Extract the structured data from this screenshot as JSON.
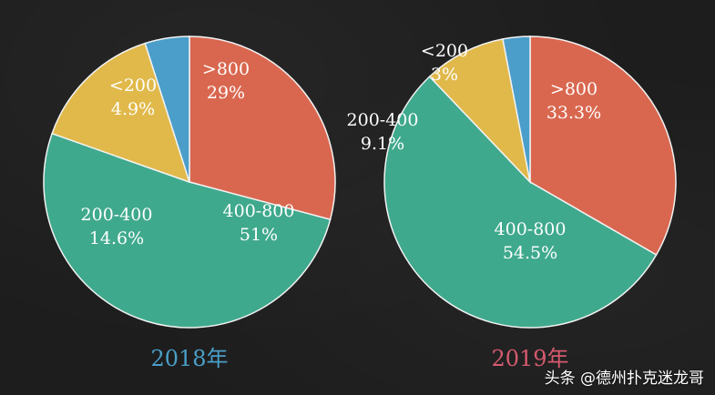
{
  "chart_data": [
    {
      "type": "pie",
      "caption": "2018年",
      "caption_color": "#4a9fc8",
      "slices": [
        {
          "label": ">800",
          "value": 29,
          "value_text": "29%",
          "color": "#d9674f"
        },
        {
          "label": "400-800",
          "value": 51,
          "value_text": "51%",
          "color": "#3fa98d"
        },
        {
          "label": "200-400",
          "value": 14.6,
          "value_text": "14.6%",
          "color": "#e0b94a"
        },
        {
          "label": "<200",
          "value": 4.9,
          "value_text": "4.9%",
          "color": "#4b9ec9"
        }
      ]
    },
    {
      "type": "pie",
      "caption": "2019年",
      "caption_color": "#d65a6e",
      "slices": [
        {
          "label": ">800",
          "value": 33.3,
          "value_text": "33.3%",
          "color": "#d9674f"
        },
        {
          "label": "400-800",
          "value": 54.5,
          "value_text": "54.5%",
          "color": "#3fa98d"
        },
        {
          "label": "200-400",
          "value": 9.1,
          "value_text": "9.1%",
          "color": "#e0b94a"
        },
        {
          "label": "<200",
          "value": 3,
          "value_text": "3%",
          "color": "#4b9ec9"
        }
      ]
    }
  ],
  "watermark": {
    "text": "头条 @德州扑克迷龙哥"
  }
}
